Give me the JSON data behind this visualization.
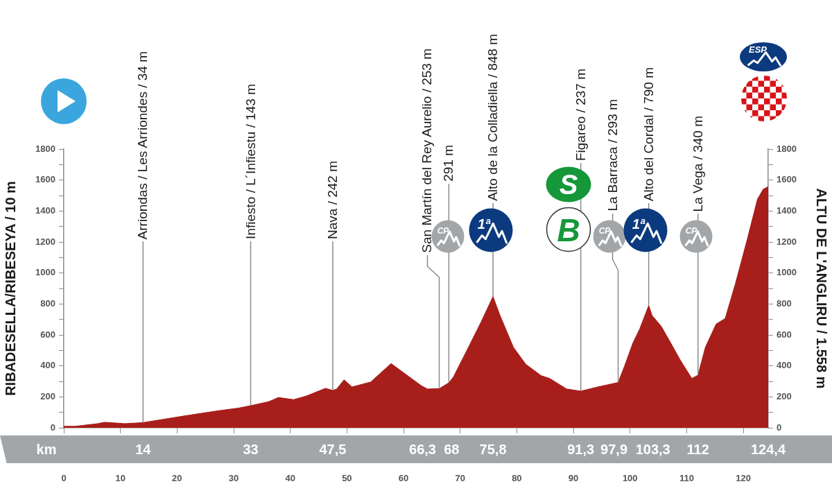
{
  "chart_data": {
    "type": "area",
    "ylabel": "RIBADESELLA/RIBESEYA / 10 m",
    "y2label": "ALTU DE L'ANGLIRU / 1.558 m",
    "x": [
      0,
      2,
      6,
      7.2,
      10.8,
      14,
      21.3,
      27,
      30.9,
      33,
      36.2,
      37.9,
      40.6,
      42.8,
      46.2,
      47.5,
      48.2,
      49.5,
      50.9,
      54.2,
      57.8,
      63.1,
      64.2,
      66.3,
      68,
      68.8,
      71.2,
      73.7,
      75.8,
      77,
      79.4,
      81.6,
      84.3,
      85.8,
      88.8,
      91.3,
      93.8,
      97.9,
      99,
      100.5,
      101.7,
      103.3,
      103.9,
      105.5,
      107.2,
      108.8,
      110.9,
      112,
      113.3,
      115.2,
      116.8,
      118.6,
      120.7,
      122.5,
      123.5,
      124.4
    ],
    "series": [
      {
        "color": "#a81e1a",
        "values": [
          10,
          10,
          27,
          36,
          27,
          34,
          77,
          109,
          128,
          143,
          169,
          196,
          182,
          205,
          255,
          242,
          251,
          310,
          264,
          296,
          415,
          273,
          251,
          253,
          291,
          328,
          501,
          684,
          848,
          729,
          520,
          410,
          337,
          319,
          251,
          237,
          260,
          293,
          396,
          547,
          638,
          790,
          725,
          656,
          547,
          442,
          319,
          340,
          520,
          670,
          706,
          930,
          1217,
          1476,
          1540,
          1558
        ]
      }
    ],
    "xlim": [
      0,
      124.4
    ],
    "xticks": [
      0,
      10,
      20,
      30,
      40,
      50,
      60,
      70,
      80,
      90,
      100,
      110,
      120
    ],
    "ylim": [
      0,
      1800
    ],
    "yticks": [
      0,
      {
        "value": 100,
        "label": null
      },
      200,
      {
        "value": 300,
        "label": null
      },
      400,
      {
        "value": 500,
        "label": null
      },
      600,
      {
        "value": 700,
        "label": null
      },
      800,
      {
        "value": 900,
        "label": null
      },
      1000,
      {
        "value": 1100,
        "label": null
      },
      1200,
      {
        "value": 1300,
        "label": null
      },
      1400,
      {
        "value": 1500,
        "label": null
      },
      1600,
      {
        "value": 1700,
        "label": null
      },
      1800
    ],
    "y2lim": [
      0,
      1800
    ],
    "y2ticks": [
      0,
      {
        "value": 100,
        "label": null
      },
      200,
      {
        "value": 300,
        "label": null
      },
      400,
      {
        "value": 500,
        "label": null
      },
      600,
      {
        "value": 700,
        "label": null
      },
      800,
      {
        "value": 900,
        "label": null
      },
      1000,
      {
        "value": 1100,
        "label": null
      },
      1200,
      {
        "value": 1300,
        "label": null
      },
      1400,
      {
        "value": 1500,
        "label": null
      },
      1600,
      {
        "value": 1700,
        "label": null
      },
      1800
    ],
    "grid": false,
    "legend": false,
    "marker": "none",
    "annotations": [
      {
        "text": "Arriondas / Les Arriondes / 34 m",
        "x": 14,
        "y": 34
      },
      {
        "text": "Infiesto / L´Infiestu / 143 m",
        "x": 33,
        "y": 143
      },
      {
        "text": "Nava / 242 m",
        "x": 47.5,
        "y": 242
      },
      {
        "text": "San Martín del Rey Aurelio / 253 m",
        "x": 66.3,
        "y": 253
      },
      {
        "text": "291 m",
        "x": 68,
        "y": 291
      },
      {
        "text": "Alto de la Colladiella / 848 m",
        "x": 75.8,
        "y": 848
      },
      {
        "text": "Figareo / 237 m",
        "x": 91.3,
        "y": 237
      },
      {
        "text": "La Barraca / 293 m",
        "x": 97.9,
        "y": 293
      },
      {
        "text": "Alto del Cordal / 790 m",
        "x": 103.3,
        "y": 790
      },
      {
        "text": "La Vega / 340 m",
        "x": 112,
        "y": 340
      },
      "14",
      "33",
      "47,5",
      "66,3",
      "68",
      "75,8",
      "91,3",
      "97,9",
      "103,3",
      "112",
      "124,4",
      "km",
      "ESP",
      "CP",
      "1ª",
      "S",
      "B"
    ]
  }
}
